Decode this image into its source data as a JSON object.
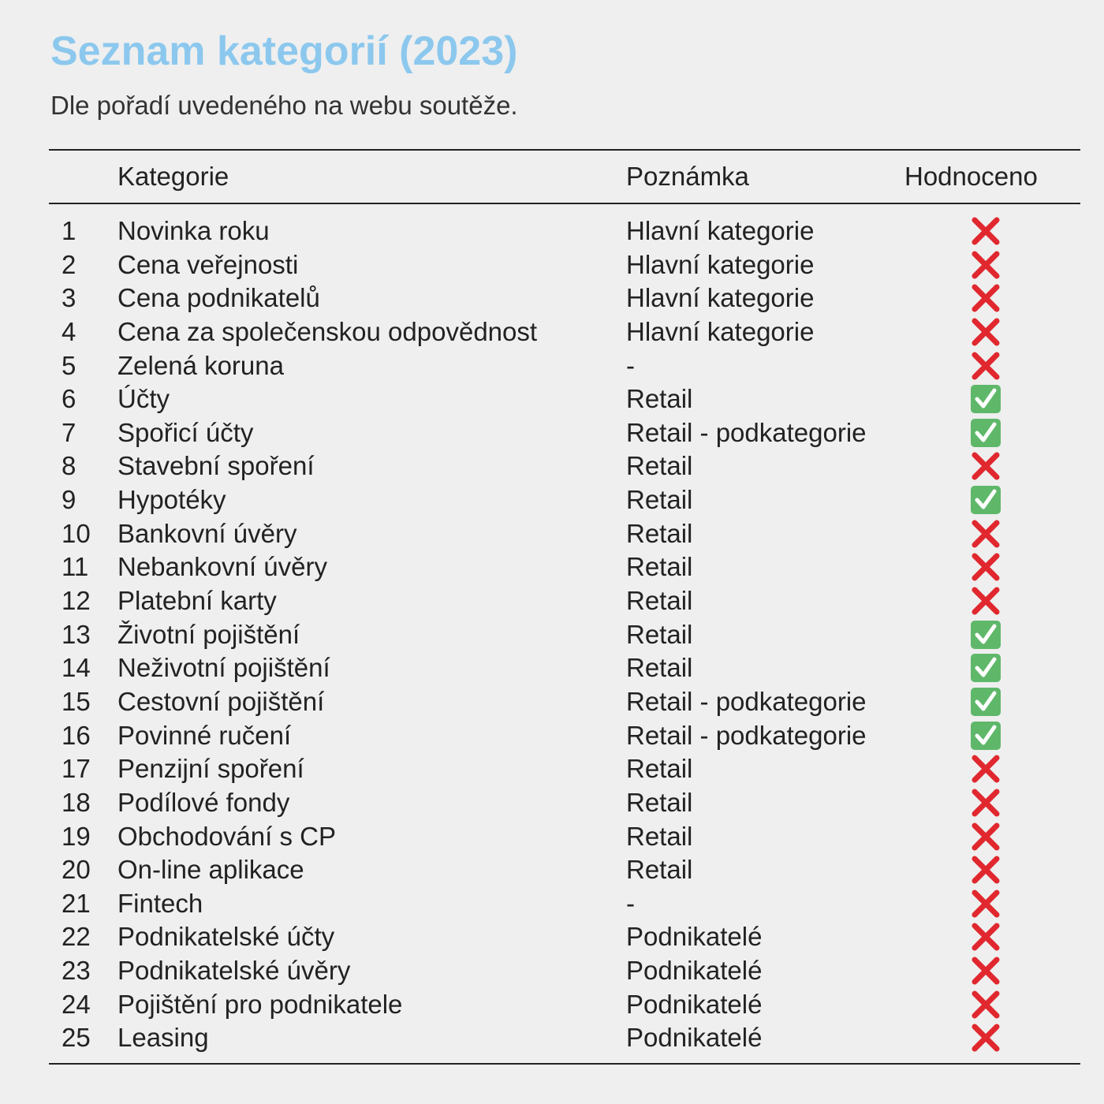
{
  "title": "Seznam kategorií (2023)",
  "subtitle": "Dle pořadí uvedeného na webu soutěže.",
  "colors": {
    "title": "#8cc8ee",
    "check_bg": "#5fb86a",
    "cross": "#e0282e",
    "background": "#efefef"
  },
  "table": {
    "headers": {
      "number": "",
      "category": "Kategorie",
      "note": "Poznámka",
      "evaluated": "Hodnoceno"
    },
    "rows": [
      {
        "number": "1",
        "category": "Novinka roku",
        "note": "Hlavní kategorie",
        "evaluated": false,
        "icon": "cross-mark-icon"
      },
      {
        "number": "2",
        "category": "Cena veřejnosti",
        "note": "Hlavní kategorie",
        "evaluated": false,
        "icon": "cross-mark-icon"
      },
      {
        "number": "3",
        "category": "Cena podnikatelů",
        "note": "Hlavní kategorie",
        "evaluated": false,
        "icon": "cross-mark-icon"
      },
      {
        "number": "4",
        "category": "Cena za společenskou odpovědnost",
        "note": "Hlavní kategorie",
        "evaluated": false,
        "icon": "cross-mark-icon"
      },
      {
        "number": "5",
        "category": "Zelená koruna",
        "note": "-",
        "evaluated": false,
        "icon": "cross-mark-icon"
      },
      {
        "number": "6",
        "category": "Účty",
        "note": "Retail",
        "evaluated": true,
        "icon": "check-mark-icon"
      },
      {
        "number": "7",
        "category": "Spořicí účty",
        "note": "Retail - podkategorie",
        "evaluated": true,
        "icon": "check-mark-icon"
      },
      {
        "number": "8",
        "category": "Stavební spoření",
        "note": "Retail",
        "evaluated": false,
        "icon": "cross-mark-icon"
      },
      {
        "number": "9",
        "category": "Hypotéky",
        "note": "Retail",
        "evaluated": true,
        "icon": "check-mark-icon"
      },
      {
        "number": "10",
        "category": "Bankovní úvěry",
        "note": "Retail",
        "evaluated": false,
        "icon": "cross-mark-icon"
      },
      {
        "number": "11",
        "category": "Nebankovní úvěry",
        "note": "Retail",
        "evaluated": false,
        "icon": "cross-mark-icon"
      },
      {
        "number": "12",
        "category": "Platební karty",
        "note": "Retail",
        "evaluated": false,
        "icon": "cross-mark-icon"
      },
      {
        "number": "13",
        "category": "Životní pojištění",
        "note": "Retail",
        "evaluated": true,
        "icon": "check-mark-icon"
      },
      {
        "number": "14",
        "category": "Neživotní pojištění",
        "note": "Retail",
        "evaluated": true,
        "icon": "check-mark-icon"
      },
      {
        "number": "15",
        "category": "Cestovní pojištění",
        "note": "Retail - podkategorie",
        "evaluated": true,
        "icon": "check-mark-icon"
      },
      {
        "number": "16",
        "category": "Povinné ručení",
        "note": "Retail - podkategorie",
        "evaluated": true,
        "icon": "check-mark-icon"
      },
      {
        "number": "17",
        "category": "Penzijní spoření",
        "note": "Retail",
        "evaluated": false,
        "icon": "cross-mark-icon"
      },
      {
        "number": "18",
        "category": "Podílové fondy",
        "note": "Retail",
        "evaluated": false,
        "icon": "cross-mark-icon"
      },
      {
        "number": "19",
        "category": "Obchodování s CP",
        "note": "Retail",
        "evaluated": false,
        "icon": "cross-mark-icon"
      },
      {
        "number": "20",
        "category": "On-line aplikace",
        "note": "Retail",
        "evaluated": false,
        "icon": "cross-mark-icon"
      },
      {
        "number": "21",
        "category": "Fintech",
        "note": "-",
        "evaluated": false,
        "icon": "cross-mark-icon"
      },
      {
        "number": "22",
        "category": "Podnikatelské účty",
        "note": "Podnikatelé",
        "evaluated": false,
        "icon": "cross-mark-icon"
      },
      {
        "number": "23",
        "category": "Podnikatelské úvěry",
        "note": "Podnikatelé",
        "evaluated": false,
        "icon": "cross-mark-icon"
      },
      {
        "number": "24",
        "category": "Pojištění pro podnikatele",
        "note": "Podnikatelé",
        "evaluated": false,
        "icon": "cross-mark-icon"
      },
      {
        "number": "25",
        "category": "Leasing",
        "note": "Podnikatelé",
        "evaluated": false,
        "icon": "cross-mark-icon"
      }
    ]
  }
}
